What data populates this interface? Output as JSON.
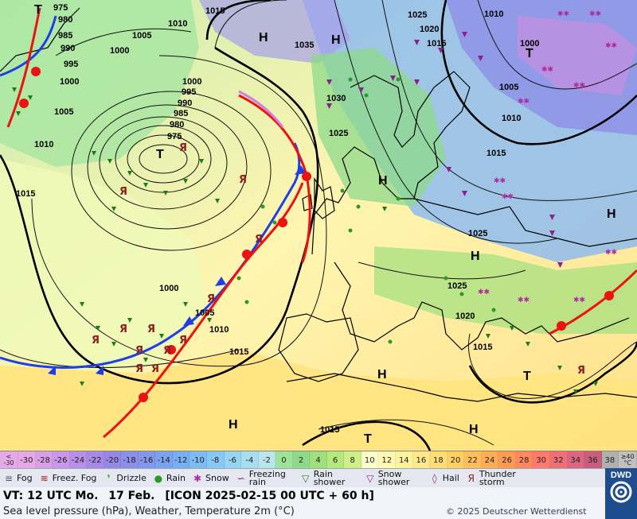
{
  "map": {
    "pressure_centers": [
      {
        "type": "H",
        "lon_desc": "Norwegian Sea"
      },
      {
        "type": "H",
        "lon_desc": "Scandinavia north"
      },
      {
        "type": "T",
        "lon_desc": "Atlantic low"
      },
      {
        "type": "H",
        "lon_desc": "North Sea"
      },
      {
        "type": "H",
        "lon_desc": "Central Europe"
      },
      {
        "type": "H",
        "lon_desc": "Russia"
      },
      {
        "type": "T",
        "lon_desc": "Barents Sea"
      },
      {
        "type": "H",
        "lon_desc": "Mediterranean west"
      },
      {
        "type": "T",
        "lon_desc": "Eastern Mediterranean"
      },
      {
        "type": "H",
        "lon_desc": "Azores"
      },
      {
        "type": "T",
        "lon_desc": "North Africa"
      },
      {
        "type": "H",
        "lon_desc": "Libya"
      },
      {
        "type": "T",
        "lon_desc": "Greenland"
      }
    ],
    "isobar_labels": [
      "975",
      "980",
      "985",
      "990",
      "995",
      "1000",
      "1005",
      "1010",
      "1015",
      "1020",
      "1025",
      "1030",
      "1035"
    ]
  },
  "temperature_scale": {
    "low_label": [
      "<",
      "-30"
    ],
    "high_label": [
      "≥40",
      "°C"
    ],
    "values": [
      "-30",
      "-28",
      "-26",
      "-24",
      "-22",
      "-20",
      "-18",
      "-16",
      "-14",
      "-12",
      "-10",
      "-8",
      "-6",
      "-4",
      "-2",
      "0",
      "2",
      "4",
      "6",
      "8",
      "10",
      "12",
      "14",
      "16",
      "18",
      "20",
      "22",
      "24",
      "26",
      "28",
      "30",
      "32",
      "34",
      "36",
      "38"
    ],
    "colors": [
      "#e6a8e6",
      "#d99ee8",
      "#c996e8",
      "#b88ee6",
      "#a689e6",
      "#9588e4",
      "#8a8fe8",
      "#8396ec",
      "#7ba2ef",
      "#76b0f2",
      "#7cbcf3",
      "#88c8f4",
      "#97d3f3",
      "#a8ddf1",
      "#b9e6ec",
      "#9fe39a",
      "#8ed98a",
      "#9fe07d",
      "#b6e97d",
      "#cdef86",
      "#ffffcc",
      "#fff8b5",
      "#fff29c",
      "#ffe98a",
      "#ffdd75",
      "#ffcf62",
      "#ffbe5a",
      "#ffad55",
      "#ff9a55",
      "#ff8860",
      "#ff7a6c",
      "#ee6f77",
      "#de6580",
      "#c95d7e",
      "#b0b0b0"
    ]
  },
  "legend": [
    {
      "icon": "fog-icon",
      "symbol": "≡",
      "label": "Fog"
    },
    {
      "icon": "freezing-fog-icon",
      "symbol": "≋",
      "label": "Freez. Fog"
    },
    {
      "icon": "drizzle-icon",
      "symbol": "❜",
      "label": "Drizzle"
    },
    {
      "icon": "rain-icon",
      "symbol": "●",
      "label": "Rain"
    },
    {
      "icon": "snow-icon",
      "symbol": "✱",
      "label": "Snow"
    },
    {
      "icon": "freezing-rain-icon",
      "symbol": "∽",
      "label": "Freezing rain"
    },
    {
      "icon": "rain-shower-icon",
      "symbol": "▽",
      "label": "Rain shower"
    },
    {
      "icon": "snow-shower-icon",
      "symbol": "▽",
      "label": "Snow shower"
    },
    {
      "icon": "hail-icon",
      "symbol": "◊",
      "label": "Hail"
    },
    {
      "icon": "thunderstorm-icon",
      "symbol": "Я",
      "label": "Thunder storm"
    }
  ],
  "info": {
    "valid_time": "VT: 12 UTC Mo.",
    "date": "17 Feb.",
    "model_run": "[ICON 2025-02-15  00 UTC + 60 h]",
    "description": "Sea level pressure (hPa), Weather, Temperature 2m (°C)",
    "copyright": "© 2025 Deutscher Wetterdienst",
    "logo_text": "DWD"
  }
}
